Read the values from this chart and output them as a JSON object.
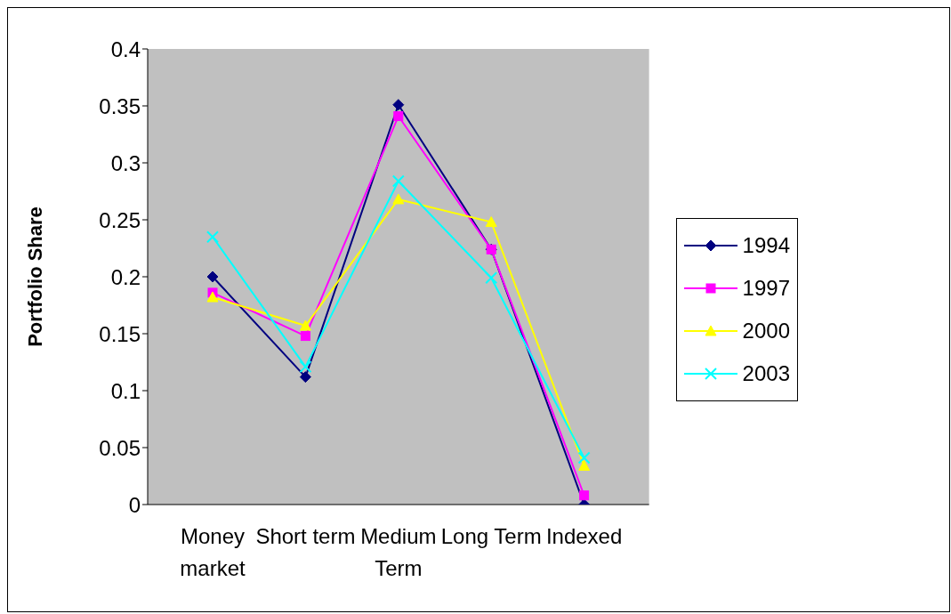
{
  "chart_data": {
    "type": "line",
    "ylabel": "Portfolio Share",
    "categories": [
      "Money market",
      "Short term",
      "Medium Term",
      "Long Term",
      "Indexed"
    ],
    "series": [
      {
        "name": "1994",
        "color": "#000080",
        "marker": "diamond",
        "values": [
          0.2,
          0.112,
          0.351,
          0.224,
          0
        ]
      },
      {
        "name": "1997",
        "color": "#ff00ff",
        "marker": "square",
        "values": [
          0.186,
          0.148,
          0.341,
          0.224,
          0.008
        ]
      },
      {
        "name": "2000",
        "color": "#ffff00",
        "marker": "triangle",
        "values": [
          0.182,
          0.157,
          0.268,
          0.248,
          0.034
        ]
      },
      {
        "name": "2003",
        "color": "#00ffff",
        "marker": "cross",
        "values": [
          0.235,
          0.121,
          0.284,
          0.199,
          0.041
        ]
      }
    ],
    "ylim": [
      0,
      0.4
    ],
    "yticks": [
      0,
      0.05,
      0.1,
      0.15,
      0.2,
      0.25,
      0.3,
      0.35,
      0.4
    ],
    "legend": "right"
  }
}
